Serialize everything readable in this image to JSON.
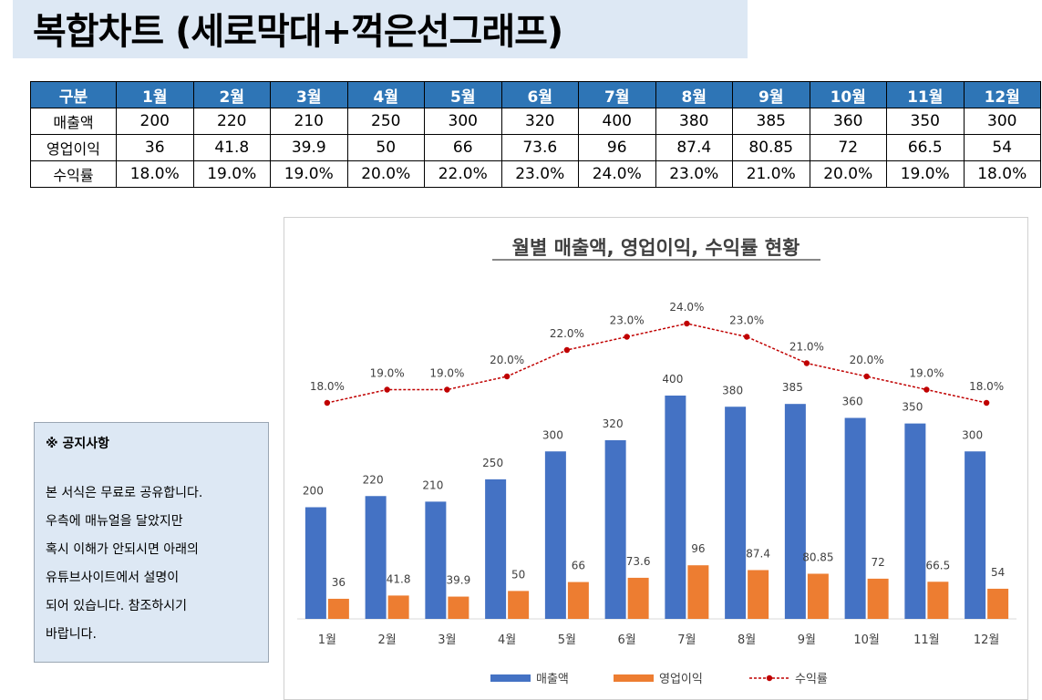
{
  "page": {
    "title": "복합차트 (세로막대+꺽은선그래프)"
  },
  "table": {
    "header": [
      "구분",
      "1월",
      "2월",
      "3월",
      "4월",
      "5월",
      "6월",
      "7월",
      "8월",
      "9월",
      "10월",
      "11월",
      "12월"
    ],
    "rows": [
      {
        "label": "매출액",
        "values": [
          "200",
          "220",
          "210",
          "250",
          "300",
          "320",
          "400",
          "380",
          "385",
          "360",
          "350",
          "300"
        ]
      },
      {
        "label": "영업이익",
        "values": [
          "36",
          "41.8",
          "39.9",
          "50",
          "66",
          "73.6",
          "96",
          "87.4",
          "80.85",
          "72",
          "66.5",
          "54"
        ]
      },
      {
        "label": "수익률",
        "values": [
          "18.0%",
          "19.0%",
          "19.0%",
          "20.0%",
          "22.0%",
          "23.0%",
          "24.0%",
          "23.0%",
          "21.0%",
          "20.0%",
          "19.0%",
          "18.0%"
        ]
      }
    ]
  },
  "notice": {
    "title": "※ 공지사항",
    "body": "본 서식은 무료로 공유합니다.\n우측에 매뉴얼을 달았지만\n혹시 이해가 안되시면 아래의\n유튜브사이트에서 설명이\n되어 있습니다. 참조하시기\n바랍니다."
  },
  "chart_data": {
    "type": "bar",
    "title": "월별 매출액, 영업이익, 수익률 현황",
    "categories": [
      "1월",
      "2월",
      "3월",
      "4월",
      "5월",
      "6월",
      "7월",
      "8월",
      "9월",
      "10월",
      "11월",
      "12월"
    ],
    "series": [
      {
        "name": "매출액",
        "type": "bar",
        "axis": "primary",
        "color": "#4472c4",
        "values": [
          200,
          220,
          210,
          250,
          300,
          320,
          400,
          380,
          385,
          360,
          350,
          300
        ],
        "labels": [
          "200",
          "220",
          "210",
          "250",
          "300",
          "320",
          "400",
          "380",
          "385",
          "360",
          "350",
          "300"
        ]
      },
      {
        "name": "영업이익",
        "type": "bar",
        "axis": "primary",
        "color": "#ed7d31",
        "values": [
          36,
          41.8,
          39.9,
          50,
          66,
          73.6,
          96,
          87.4,
          80.85,
          72,
          66.5,
          54
        ],
        "labels": [
          "36",
          "41.8",
          "39.9",
          "50",
          "66",
          "73.6",
          "96",
          "87.4",
          "80.85",
          "72",
          "66.5",
          "54"
        ]
      },
      {
        "name": "수익률",
        "type": "line",
        "axis": "secondary",
        "color": "#c00000",
        "style": "dashed-with-markers",
        "values": [
          0.18,
          0.19,
          0.19,
          0.2,
          0.22,
          0.23,
          0.24,
          0.23,
          0.21,
          0.2,
          0.19,
          0.18
        ],
        "labels": [
          "18.0%",
          "19.0%",
          "19.0%",
          "20.0%",
          "22.0%",
          "23.0%",
          "24.0%",
          "23.0%",
          "21.0%",
          "20.0%",
          "19.0%",
          "18.0%"
        ]
      }
    ],
    "legend": "bottom",
    "grid": false
  }
}
